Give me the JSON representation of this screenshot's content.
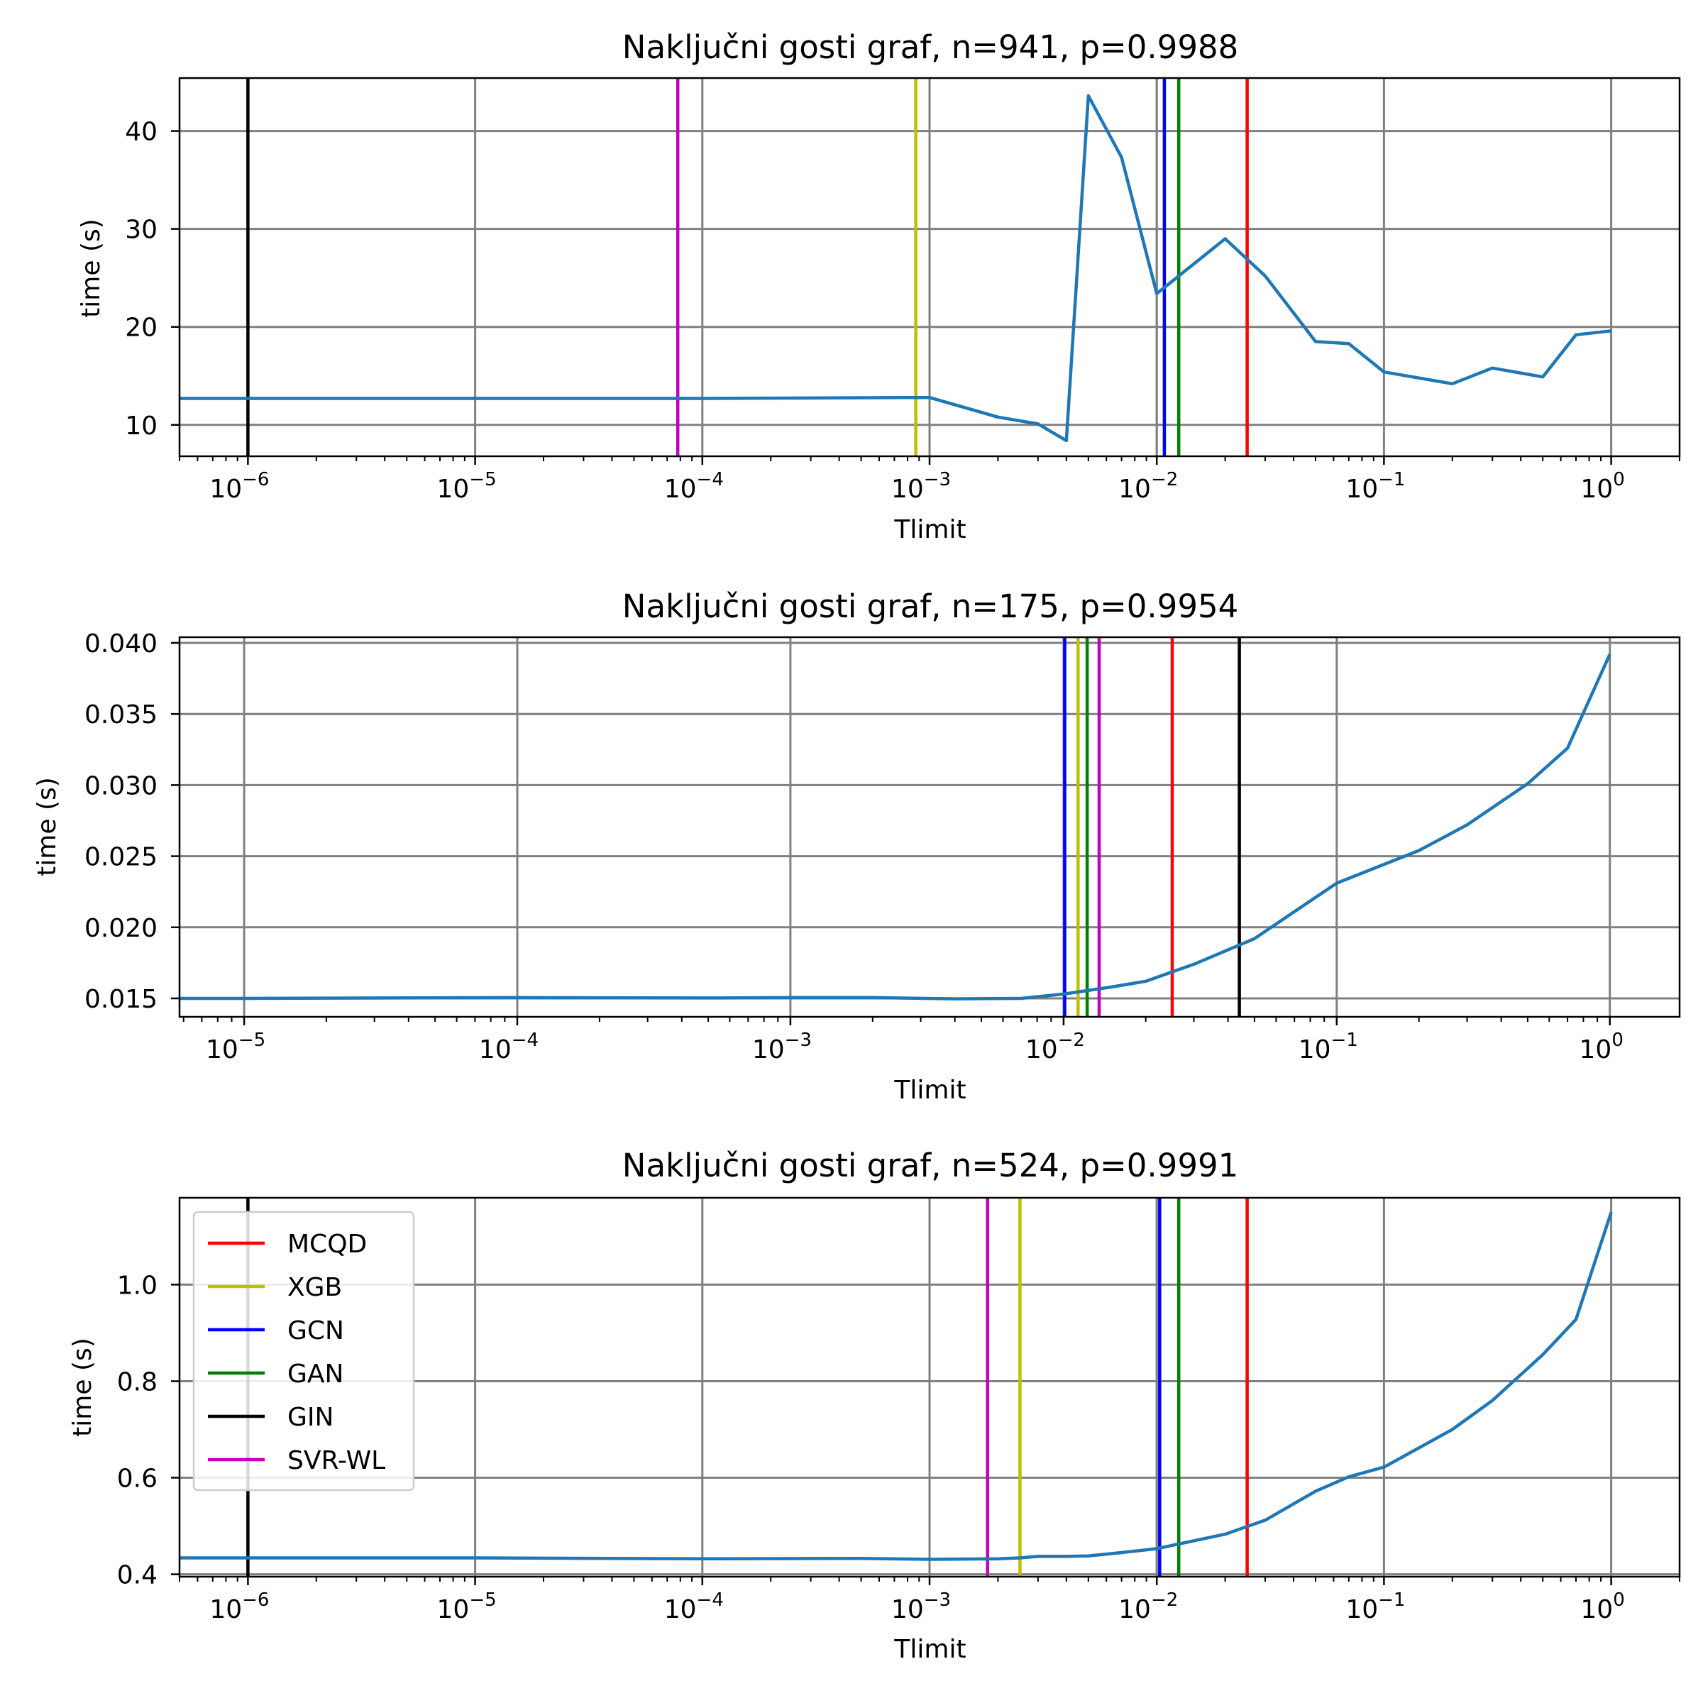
{
  "chart_data": [
    {
      "type": "line",
      "title": "Naključni gosti graf, n=941, p=0.9988",
      "xlabel": "Tlimit",
      "ylabel": "time (s)",
      "xscale": "log",
      "xlim": [
        5e-07,
        2
      ],
      "ylim": [
        6.8,
        45.4
      ],
      "grid": true,
      "x_ticks": [
        {
          "value": 1e-06,
          "base": "10",
          "exp": "−6"
        },
        {
          "value": 1e-05,
          "base": "10",
          "exp": "−5"
        },
        {
          "value": 0.0001,
          "base": "10",
          "exp": "−4"
        },
        {
          "value": 0.001,
          "base": "10",
          "exp": "−3"
        },
        {
          "value": 0.01,
          "base": "10",
          "exp": "−2"
        },
        {
          "value": 0.1,
          "base": "10",
          "exp": "−1"
        },
        {
          "value": 1,
          "base": "10",
          "exp": "0"
        }
      ],
      "y_ticks": [
        {
          "value": 10,
          "label": "10"
        },
        {
          "value": 20,
          "label": "20"
        },
        {
          "value": 30,
          "label": "30"
        },
        {
          "value": 40,
          "label": "40"
        }
      ],
      "series": [
        {
          "color": "#1f77b4",
          "x": [
            5e-07,
            1e-06,
            1e-05,
            0.0001,
            0.0009,
            0.001,
            0.002,
            0.003,
            0.004,
            0.005,
            0.007,
            0.01,
            0.02,
            0.03,
            0.05,
            0.07,
            0.1,
            0.2,
            0.3,
            0.5,
            0.7,
            1
          ],
          "y": [
            12.7,
            12.7,
            12.7,
            12.7,
            12.8,
            12.8,
            10.8,
            10.1,
            8.4,
            43.6,
            37.3,
            23.4,
            29.0,
            25.2,
            18.5,
            18.3,
            15.4,
            14.2,
            15.8,
            14.9,
            19.2,
            19.6
          ]
        }
      ],
      "vlines": [
        {
          "label": "MCQD",
          "color": "#ff0000",
          "x": 0.025
        },
        {
          "label": "XGB",
          "color": "#bfbf00",
          "x": 0.00087
        },
        {
          "label": "GCN",
          "color": "#0000ff",
          "x": 0.0108
        },
        {
          "label": "GAN",
          "color": "#008000",
          "x": 0.0125
        },
        {
          "label": "GIN",
          "color": "#000000",
          "x": 1e-06
        },
        {
          "label": "SVR-WL",
          "color": "#bf00bf",
          "x": 7.8e-05
        }
      ],
      "extra_grid_x": [
        0.01
      ]
    },
    {
      "type": "line",
      "title": "Naključni gosti graf, n=175, p=0.9954",
      "xlabel": "Tlimit",
      "ylabel": "time (s)",
      "xscale": "log",
      "xlim": [
        5.8e-06,
        1.8
      ],
      "ylim": [
        0.0137,
        0.0404
      ],
      "grid": true,
      "x_ticks": [
        {
          "value": 1e-05,
          "base": "10",
          "exp": "−5"
        },
        {
          "value": 0.0001,
          "base": "10",
          "exp": "−4"
        },
        {
          "value": 0.001,
          "base": "10",
          "exp": "−3"
        },
        {
          "value": 0.01,
          "base": "10",
          "exp": "−2"
        },
        {
          "value": 0.1,
          "base": "10",
          "exp": "−1"
        },
        {
          "value": 1,
          "base": "10",
          "exp": "0"
        }
      ],
      "y_ticks": [
        {
          "value": 0.015,
          "label": "0.015"
        },
        {
          "value": 0.02,
          "label": "0.020"
        },
        {
          "value": 0.025,
          "label": "0.025"
        },
        {
          "value": 0.03,
          "label": "0.030"
        },
        {
          "value": 0.035,
          "label": "0.035"
        },
        {
          "value": 0.04,
          "label": "0.040"
        }
      ],
      "series": [
        {
          "color": "#1f77b4",
          "x": [
            5.8e-06,
            1e-05,
            0.0001,
            0.0005,
            0.001,
            0.002,
            0.004,
            0.005,
            0.007,
            0.01,
            0.015,
            0.02,
            0.03,
            0.05,
            0.07,
            0.1,
            0.2,
            0.3,
            0.5,
            0.7,
            1
          ],
          "y": [
            0.015,
            0.015,
            0.01505,
            0.01503,
            0.01505,
            0.01505,
            0.01497,
            0.01498,
            0.015,
            0.0153,
            0.0158,
            0.0162,
            0.0174,
            0.0192,
            0.0211,
            0.0231,
            0.0254,
            0.0272,
            0.0301,
            0.0326,
            0.0392
          ]
        }
      ],
      "vlines": [
        {
          "label": "MCQD",
          "color": "#ff0000",
          "x": 0.025
        },
        {
          "label": "XGB",
          "color": "#bfbf00",
          "x": 0.0113
        },
        {
          "label": "GCN",
          "color": "#0000ff",
          "x": 0.0101
        },
        {
          "label": "GAN",
          "color": "#008000",
          "x": 0.0122
        },
        {
          "label": "GIN",
          "color": "#000000",
          "x": 0.044
        },
        {
          "label": "SVR-WL",
          "color": "#bf00bf",
          "x": 0.0135
        }
      ],
      "extra_grid_x": []
    },
    {
      "type": "line",
      "title": "Naključni gosti graf, n=524, p=0.9991",
      "xlabel": "Tlimit",
      "ylabel": "time (s)",
      "xscale": "log",
      "xlim": [
        5e-07,
        2
      ],
      "ylim": [
        0.395,
        1.18
      ],
      "grid": true,
      "legend": "top-left",
      "x_ticks": [
        {
          "value": 1e-06,
          "base": "10",
          "exp": "−6"
        },
        {
          "value": 1e-05,
          "base": "10",
          "exp": "−5"
        },
        {
          "value": 0.0001,
          "base": "10",
          "exp": "−4"
        },
        {
          "value": 0.001,
          "base": "10",
          "exp": "−3"
        },
        {
          "value": 0.01,
          "base": "10",
          "exp": "−2"
        },
        {
          "value": 0.1,
          "base": "10",
          "exp": "−1"
        },
        {
          "value": 1,
          "base": "10",
          "exp": "0"
        }
      ],
      "y_ticks": [
        {
          "value": 0.4,
          "label": "0.4"
        },
        {
          "value": 0.6,
          "label": "0.6"
        },
        {
          "value": 0.8,
          "label": "0.8"
        },
        {
          "value": 1.0,
          "label": "1.0"
        }
      ],
      "series": [
        {
          "color": "#1f77b4",
          "x": [
            5e-07,
            1e-06,
            1e-05,
            0.0001,
            0.0005,
            0.001,
            0.002,
            0.0025,
            0.003,
            0.004,
            0.005,
            0.007,
            0.01,
            0.02,
            0.03,
            0.05,
            0.07,
            0.1,
            0.2,
            0.3,
            0.5,
            0.7,
            1
          ],
          "y": [
            0.434,
            0.434,
            0.434,
            0.432,
            0.433,
            0.431,
            0.432,
            0.434,
            0.437,
            0.437,
            0.438,
            0.445,
            0.453,
            0.483,
            0.512,
            0.572,
            0.602,
            0.622,
            0.7,
            0.76,
            0.855,
            0.928,
            1.15
          ]
        }
      ],
      "vlines": [
        {
          "label": "MCQD",
          "color": "#ff0000",
          "x": 0.025
        },
        {
          "label": "XGB",
          "color": "#bfbf00",
          "x": 0.0025
        },
        {
          "label": "GCN",
          "color": "#0000ff",
          "x": 0.0103
        },
        {
          "label": "GAN",
          "color": "#008000",
          "x": 0.0125
        },
        {
          "label": "GIN",
          "color": "#000000",
          "x": 1e-06
        },
        {
          "label": "SVR-WL",
          "color": "#bf00bf",
          "x": 0.0018
        }
      ],
      "extra_grid_x": [
        0.01
      ]
    }
  ]
}
